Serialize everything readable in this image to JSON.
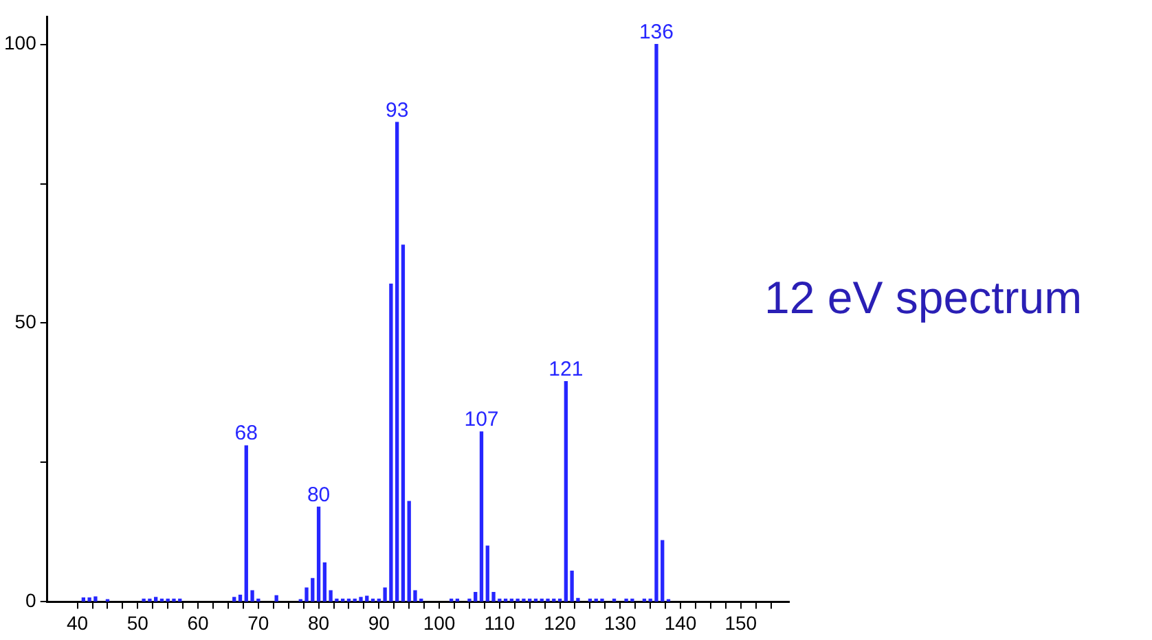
{
  "chart_data": {
    "type": "bar",
    "title": "12 eV spectrum",
    "color": "#2626ff",
    "x": [
      41,
      42,
      43,
      45,
      51,
      52,
      53,
      54,
      55,
      56,
      57,
      66,
      67,
      68,
      69,
      70,
      73,
      77,
      78,
      79,
      80,
      81,
      82,
      83,
      84,
      85,
      86,
      87,
      88,
      89,
      90,
      91,
      92,
      93,
      94,
      95,
      96,
      97,
      102,
      103,
      105,
      106,
      107,
      108,
      109,
      110,
      111,
      112,
      113,
      114,
      115,
      116,
      117,
      118,
      119,
      120,
      121,
      122,
      123,
      125,
      126,
      127,
      129,
      131,
      132,
      134,
      135,
      136,
      137,
      138
    ],
    "values": [
      0.7,
      0.7,
      0.9,
      0.4,
      0.5,
      0.5,
      0.8,
      0.5,
      0.5,
      0.5,
      0.5,
      0.8,
      1.2,
      28,
      2,
      0.5,
      1.1,
      0.4,
      2.5,
      4.2,
      17,
      7,
      2,
      0.5,
      0.5,
      0.5,
      0.5,
      0.8,
      1,
      0.5,
      0.5,
      2.5,
      57,
      86,
      64,
      18,
      2,
      0.5,
      0.5,
      0.5,
      0.5,
      1.7,
      30.5,
      10,
      1.7,
      0.5,
      0.5,
      0.5,
      0.5,
      0.5,
      0.5,
      0.5,
      0.5,
      0.5,
      0.5,
      0.5,
      39.5,
      5.5,
      0.6,
      0.5,
      0.5,
      0.5,
      0.5,
      0.5,
      0.5,
      0.5,
      0.5,
      100,
      11,
      0.4
    ],
    "annotations": [
      {
        "text": "68",
        "x": 68,
        "y": 28
      },
      {
        "text": "80",
        "x": 80,
        "y": 17
      },
      {
        "text": "93",
        "x": 93,
        "y": 86
      },
      {
        "text": "107",
        "x": 107,
        "y": 30.5
      },
      {
        "text": "121",
        "x": 121,
        "y": 39.5
      },
      {
        "text": "136",
        "x": 136,
        "y": 100
      }
    ],
    "xlim": [
      35,
      158
    ],
    "xticks": [
      40,
      {
        "value": 42.5,
        "label": null
      },
      {
        "value": 45,
        "label": null
      },
      {
        "value": 47.5,
        "label": null
      },
      50,
      {
        "value": 52.5,
        "label": null
      },
      {
        "value": 55,
        "label": null
      },
      {
        "value": 57.5,
        "label": null
      },
      60,
      {
        "value": 62.5,
        "label": null
      },
      {
        "value": 65,
        "label": null
      },
      {
        "value": 67.5,
        "label": null
      },
      70,
      {
        "value": 72.5,
        "label": null
      },
      {
        "value": 75,
        "label": null
      },
      {
        "value": 77.5,
        "label": null
      },
      80,
      {
        "value": 82.5,
        "label": null
      },
      {
        "value": 85,
        "label": null
      },
      {
        "value": 87.5,
        "label": null
      },
      90,
      {
        "value": 92.5,
        "label": null
      },
      {
        "value": 95,
        "label": null
      },
      {
        "value": 97.5,
        "label": null
      },
      100,
      {
        "value": 102.5,
        "label": null
      },
      {
        "value": 105,
        "label": null
      },
      {
        "value": 107.5,
        "label": null
      },
      110,
      {
        "value": 112.5,
        "label": null
      },
      {
        "value": 115,
        "label": null
      },
      {
        "value": 117.5,
        "label": null
      },
      120,
      {
        "value": 122.5,
        "label": null
      },
      {
        "value": 125,
        "label": null
      },
      {
        "value": 127.5,
        "label": null
      },
      130,
      {
        "value": 132.5,
        "label": null
      },
      {
        "value": 135,
        "label": null
      },
      {
        "value": 137.5,
        "label": null
      },
      140,
      {
        "value": 142.5,
        "label": null
      },
      {
        "value": 145,
        "label": null
      },
      {
        "value": 147.5,
        "label": null
      },
      150,
      {
        "value": 152.5,
        "label": null
      },
      {
        "value": 155,
        "label": null
      }
    ],
    "ylim": [
      0,
      105
    ],
    "yticks": [
      0,
      {
        "value": 25,
        "label": null
      },
      50,
      {
        "value": 75,
        "label": null
      },
      100
    ],
    "grid": false,
    "legend": false
  }
}
